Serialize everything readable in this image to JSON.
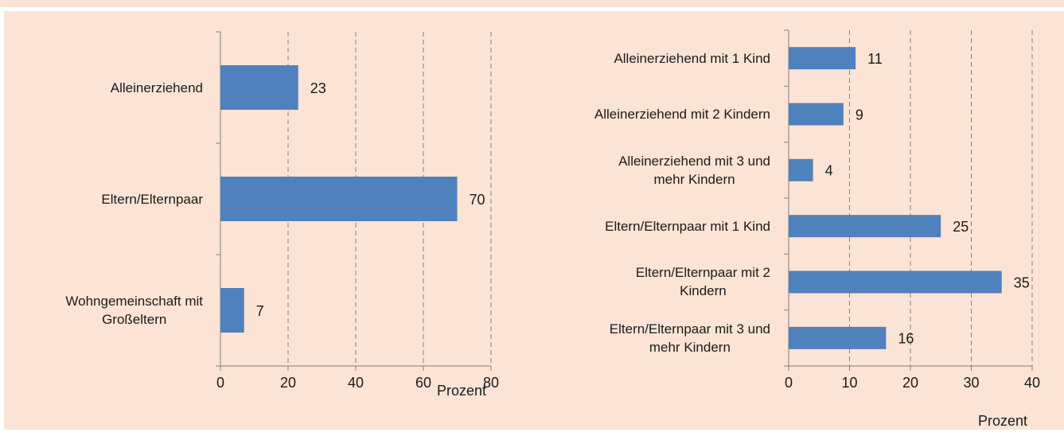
{
  "chart_data": [
    {
      "type": "bar",
      "orientation": "horizontal",
      "categories": [
        "Alleinerziehend",
        "Eltern/Elternpaar",
        "Wohngemeinschaft mit\nGroßeltern"
      ],
      "values": [
        23,
        70,
        7
      ],
      "color": "#4f81bd",
      "xlim": [
        0,
        80
      ],
      "xticks": [
        0,
        20,
        40,
        60,
        80
      ],
      "grid": true,
      "x_label": "Prozent"
    },
    {
      "type": "bar",
      "orientation": "horizontal",
      "categories": [
        "Alleinerziehend mit 1 Kind",
        "Alleinerziehend mit 2 Kindern",
        "Alleinerziehend mit 3 und\nmehr Kindern",
        "Eltern/Elternpaar mit 1 Kind",
        "Eltern/Elternpaar mit 2\nKindern",
        "Eltern/Elternpaar mit 3 und\nmehr Kindern"
      ],
      "values": [
        11,
        9,
        4,
        25,
        35,
        16
      ],
      "color": "#4f81bd",
      "xlim": [
        0,
        40
      ],
      "xticks": [
        0,
        10,
        20,
        30,
        40
      ],
      "grid": true,
      "x_label": "Prozent"
    }
  ]
}
